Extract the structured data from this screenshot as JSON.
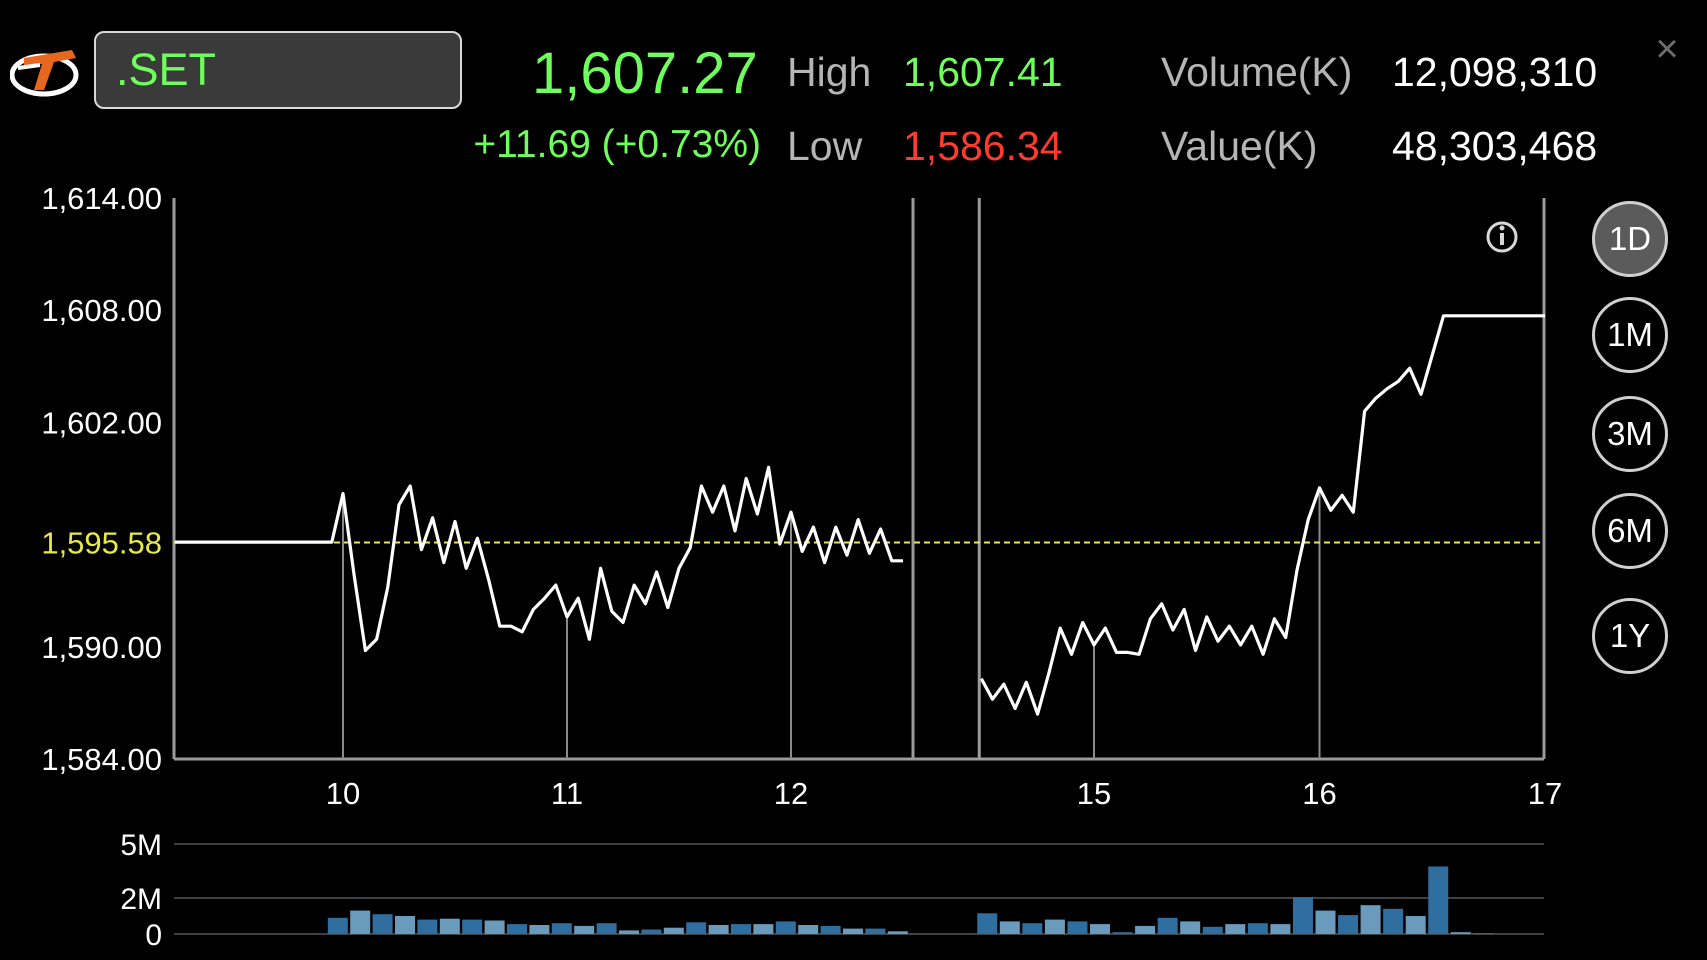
{
  "header": {
    "symbol": ".SET",
    "last": "1,607.27",
    "change": "+11.69 (+0.73%)",
    "high_label": "High",
    "high_value": "1,607.41",
    "low_label": "Low",
    "low_value": "1,586.34",
    "volume_label": "Volume(K)",
    "volume_value": "12,098,310",
    "value_label": "Value(K)",
    "value_value": "48,303,468",
    "close_symbol": "×"
  },
  "periods": [
    {
      "label": "1D",
      "active": true
    },
    {
      "label": "1M",
      "active": false
    },
    {
      "label": "3M",
      "active": false
    },
    {
      "label": "6M",
      "active": false
    },
    {
      "label": "1Y",
      "active": false
    }
  ],
  "icons": {
    "logo": "brand-logo",
    "info": "info-icon",
    "close": "close-icon"
  },
  "colors": {
    "up": "#6fff5c",
    "down": "#ff3b30",
    "prev_close": "#e8e84a",
    "line": "#ffffff",
    "volume": "#2f6e9e",
    "volume_light": "#6a9bbd"
  },
  "chart_data": {
    "type": "line",
    "ylim": [
      1584,
      1614
    ],
    "y_ticks": [
      "1,614.00",
      "1,608.00",
      "1,602.00",
      "1,590.00",
      "1,584.00"
    ],
    "y_tick_values": [
      1614,
      1608,
      1602,
      1590,
      1584
    ],
    "prev_close": 1595.58,
    "prev_close_label": "1,595.58",
    "x_ticks": [
      "10",
      "11",
      "12",
      "15",
      "16",
      "17"
    ],
    "x_tick_hours": [
      10,
      11,
      12,
      15,
      16,
      17
    ],
    "morning_session": [
      [
        9.25,
        1595.6
      ],
      [
        9.95,
        1595.6
      ],
      [
        10.0,
        1598.2
      ],
      [
        10.05,
        1593.8
      ],
      [
        10.1,
        1589.8
      ],
      [
        10.15,
        1590.4
      ],
      [
        10.2,
        1593.2
      ],
      [
        10.25,
        1597.6
      ],
      [
        10.3,
        1598.6
      ],
      [
        10.35,
        1595.2
      ],
      [
        10.4,
        1596.9
      ],
      [
        10.45,
        1594.5
      ],
      [
        10.5,
        1596.7
      ],
      [
        10.55,
        1594.2
      ],
      [
        10.6,
        1595.8
      ],
      [
        10.65,
        1593.6
      ],
      [
        10.7,
        1591.1
      ],
      [
        10.75,
        1591.1
      ],
      [
        10.8,
        1590.8
      ],
      [
        10.85,
        1592.0
      ],
      [
        10.9,
        1592.6
      ],
      [
        10.95,
        1593.3
      ],
      [
        11.0,
        1591.6
      ],
      [
        11.05,
        1592.6
      ],
      [
        11.1,
        1590.4
      ],
      [
        11.15,
        1594.2
      ],
      [
        11.2,
        1591.9
      ],
      [
        11.25,
        1591.3
      ],
      [
        11.3,
        1593.3
      ],
      [
        11.35,
        1592.3
      ],
      [
        11.4,
        1594.0
      ],
      [
        11.45,
        1592.1
      ],
      [
        11.5,
        1594.2
      ],
      [
        11.55,
        1595.3
      ],
      [
        11.6,
        1598.6
      ],
      [
        11.65,
        1597.2
      ],
      [
        11.7,
        1598.6
      ],
      [
        11.75,
        1596.2
      ],
      [
        11.8,
        1599.0
      ],
      [
        11.85,
        1597.1
      ],
      [
        11.9,
        1599.6
      ],
      [
        11.95,
        1595.5
      ],
      [
        12.0,
        1597.2
      ],
      [
        12.05,
        1595.1
      ],
      [
        12.1,
        1596.4
      ],
      [
        12.15,
        1594.5
      ],
      [
        12.2,
        1596.4
      ],
      [
        12.25,
        1594.9
      ],
      [
        12.3,
        1596.8
      ],
      [
        12.35,
        1595.0
      ],
      [
        12.4,
        1596.3
      ],
      [
        12.45,
        1594.6
      ],
      [
        12.5,
        1594.6
      ]
    ],
    "afternoon_session": [
      [
        14.5,
        1588.3
      ],
      [
        14.55,
        1587.2
      ],
      [
        14.6,
        1588.0
      ],
      [
        14.65,
        1586.7
      ],
      [
        14.7,
        1588.1
      ],
      [
        14.75,
        1586.4
      ],
      [
        14.8,
        1588.6
      ],
      [
        14.85,
        1591.0
      ],
      [
        14.9,
        1589.6
      ],
      [
        14.95,
        1591.3
      ],
      [
        15.0,
        1590.1
      ],
      [
        15.05,
        1591.0
      ],
      [
        15.1,
        1589.7
      ],
      [
        15.15,
        1589.7
      ],
      [
        15.2,
        1589.6
      ],
      [
        15.25,
        1591.5
      ],
      [
        15.3,
        1592.3
      ],
      [
        15.35,
        1590.9
      ],
      [
        15.4,
        1592.0
      ],
      [
        15.45,
        1589.8
      ],
      [
        15.5,
        1591.6
      ],
      [
        15.55,
        1590.3
      ],
      [
        15.6,
        1591.1
      ],
      [
        15.65,
        1590.1
      ],
      [
        15.7,
        1591.1
      ],
      [
        15.75,
        1589.6
      ],
      [
        15.8,
        1591.5
      ],
      [
        15.85,
        1590.5
      ],
      [
        15.9,
        1594.1
      ],
      [
        15.95,
        1596.8
      ],
      [
        16.0,
        1598.5
      ],
      [
        16.05,
        1597.3
      ],
      [
        16.1,
        1598.1
      ],
      [
        16.15,
        1597.2
      ],
      [
        16.2,
        1602.6
      ],
      [
        16.25,
        1603.3
      ],
      [
        16.3,
        1603.8
      ],
      [
        16.35,
        1604.2
      ],
      [
        16.4,
        1604.9
      ],
      [
        16.45,
        1603.5
      ],
      [
        16.55,
        1607.7
      ],
      [
        17.0,
        1607.7
      ]
    ],
    "volume_ylim": [
      0,
      5000000
    ],
    "volume_ticks": [
      "5M",
      "2M",
      "0"
    ],
    "volume_tick_values": [
      5000000,
      2000000,
      0
    ],
    "volume_bars": [
      [
        9.95,
        0.9
      ],
      [
        10.05,
        1.3
      ],
      [
        10.15,
        1.1
      ],
      [
        10.25,
        1.0
      ],
      [
        10.35,
        0.8
      ],
      [
        10.45,
        0.85
      ],
      [
        10.55,
        0.8
      ],
      [
        10.65,
        0.75
      ],
      [
        10.75,
        0.55
      ],
      [
        10.85,
        0.5
      ],
      [
        10.95,
        0.6
      ],
      [
        11.05,
        0.45
      ],
      [
        11.15,
        0.6
      ],
      [
        11.25,
        0.2
      ],
      [
        11.35,
        0.25
      ],
      [
        11.45,
        0.35
      ],
      [
        11.55,
        0.65
      ],
      [
        11.65,
        0.5
      ],
      [
        11.75,
        0.55
      ],
      [
        11.85,
        0.55
      ],
      [
        11.95,
        0.7
      ],
      [
        12.05,
        0.5
      ],
      [
        12.15,
        0.45
      ],
      [
        12.25,
        0.3
      ],
      [
        12.35,
        0.3
      ],
      [
        12.45,
        0.15
      ],
      [
        14.5,
        1.15
      ],
      [
        14.6,
        0.7
      ],
      [
        14.7,
        0.6
      ],
      [
        14.8,
        0.8
      ],
      [
        14.9,
        0.7
      ],
      [
        15.0,
        0.55
      ],
      [
        15.1,
        0.1
      ],
      [
        15.2,
        0.45
      ],
      [
        15.3,
        0.9
      ],
      [
        15.4,
        0.7
      ],
      [
        15.5,
        0.4
      ],
      [
        15.6,
        0.55
      ],
      [
        15.7,
        0.6
      ],
      [
        15.8,
        0.55
      ],
      [
        15.9,
        2.05
      ],
      [
        16.0,
        1.3
      ],
      [
        16.1,
        1.05
      ],
      [
        16.2,
        1.6
      ],
      [
        16.3,
        1.4
      ],
      [
        16.4,
        1.0
      ],
      [
        16.5,
        3.75
      ],
      [
        16.6,
        0.1
      ],
      [
        16.7,
        0.05
      ]
    ]
  }
}
